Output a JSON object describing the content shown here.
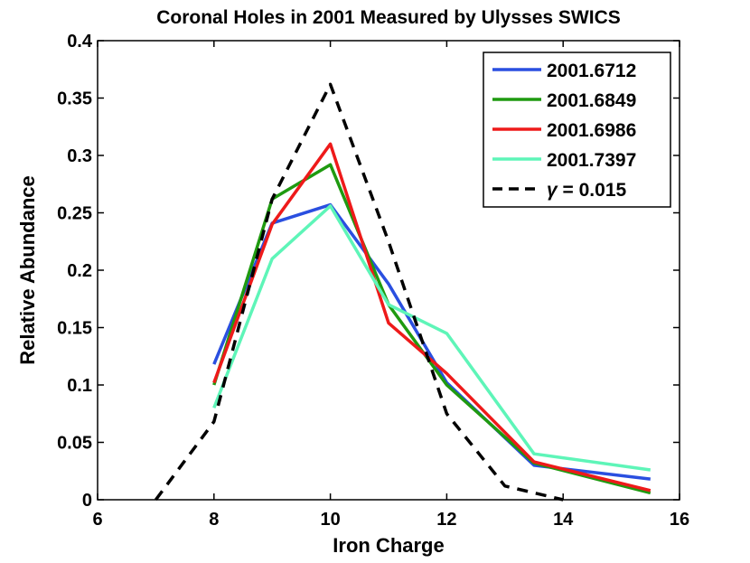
{
  "chart_data": {
    "type": "line",
    "title": "Coronal Holes in 2001 Measured by Ulysses SWICS",
    "xlabel": "Iron Charge",
    "ylabel": "Relative Abundance",
    "xlim": [
      6,
      16
    ],
    "ylim": [
      0,
      0.4
    ],
    "xticks": [
      "6",
      "8",
      "10",
      "12",
      "14",
      "16"
    ],
    "yticks": [
      "0",
      "0.05",
      "0.1",
      "0.15",
      "0.2",
      "0.25",
      "0.3",
      "0.35",
      "0.4"
    ],
    "grid": false,
    "legend_position": "top-right",
    "series": [
      {
        "name": "2001.6712",
        "color": "#2a4fe0",
        "dash": "solid",
        "x": [
          8,
          9,
          10,
          11,
          12,
          13.5,
          15.5
        ],
        "y": [
          0.118,
          0.241,
          0.257,
          0.188,
          0.102,
          0.03,
          0.018
        ]
      },
      {
        "name": "2001.6849",
        "color": "#1f9a10",
        "dash": "solid",
        "x": [
          8,
          9,
          10,
          11,
          12,
          13.5,
          15.5
        ],
        "y": [
          0.1,
          0.262,
          0.292,
          0.17,
          0.1,
          0.032,
          0.006
        ]
      },
      {
        "name": "2001.6986",
        "color": "#ee1a1a",
        "dash": "solid",
        "x": [
          8,
          9,
          10,
          11,
          12,
          13.5,
          15.5
        ],
        "y": [
          0.102,
          0.24,
          0.31,
          0.154,
          0.11,
          0.033,
          0.008
        ]
      },
      {
        "name": "2001.7397",
        "color": "#5ef5b8",
        "dash": "solid",
        "x": [
          8,
          9,
          10,
          11,
          12,
          13.5,
          15.5
        ],
        "y": [
          0.08,
          0.21,
          0.256,
          0.17,
          0.145,
          0.04,
          0.026
        ]
      },
      {
        "name": "γ = 0.015",
        "legend_symbol": "γ",
        "legend_rest": " = 0.015",
        "color": "#000000",
        "dash": "dashed",
        "x": [
          7,
          8,
          9,
          10,
          11,
          12,
          13,
          14
        ],
        "y": [
          0.0,
          0.068,
          0.262,
          0.362,
          0.225,
          0.075,
          0.012,
          0.0
        ]
      }
    ]
  }
}
